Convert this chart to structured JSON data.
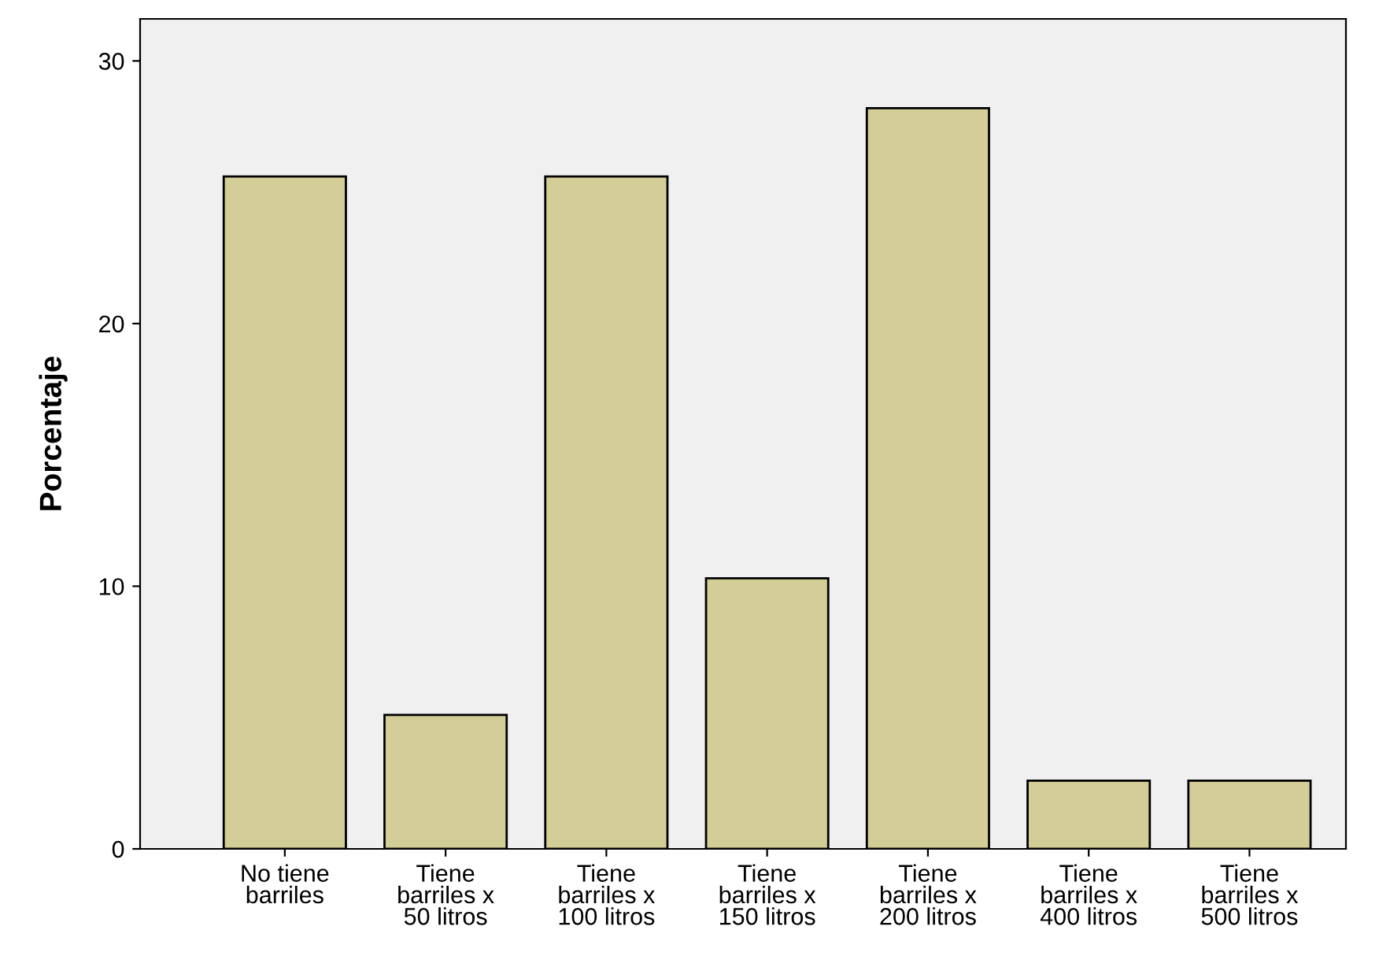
{
  "chart_data": {
    "type": "bar",
    "ylabel": "Porcentaje",
    "categories": [
      "No tiene\nbarriles",
      "Tiene\nbarriles x\n50 litros",
      "Tiene\nbarriles x\n100 litros",
      "Tiene\nbarriles x\n150 litros",
      "Tiene\nbarriles x\n200 litros",
      "Tiene\nbarriles x\n400 litros",
      "Tiene\nbarriles x\n500 litros"
    ],
    "values": [
      25.6,
      5.1,
      25.6,
      10.3,
      28.2,
      2.6,
      2.6
    ],
    "color": "#d3ce97",
    "ylim": [
      0,
      31.6
    ],
    "yticks": [
      0,
      10,
      20,
      30
    ],
    "grid": false,
    "legend": false
  }
}
